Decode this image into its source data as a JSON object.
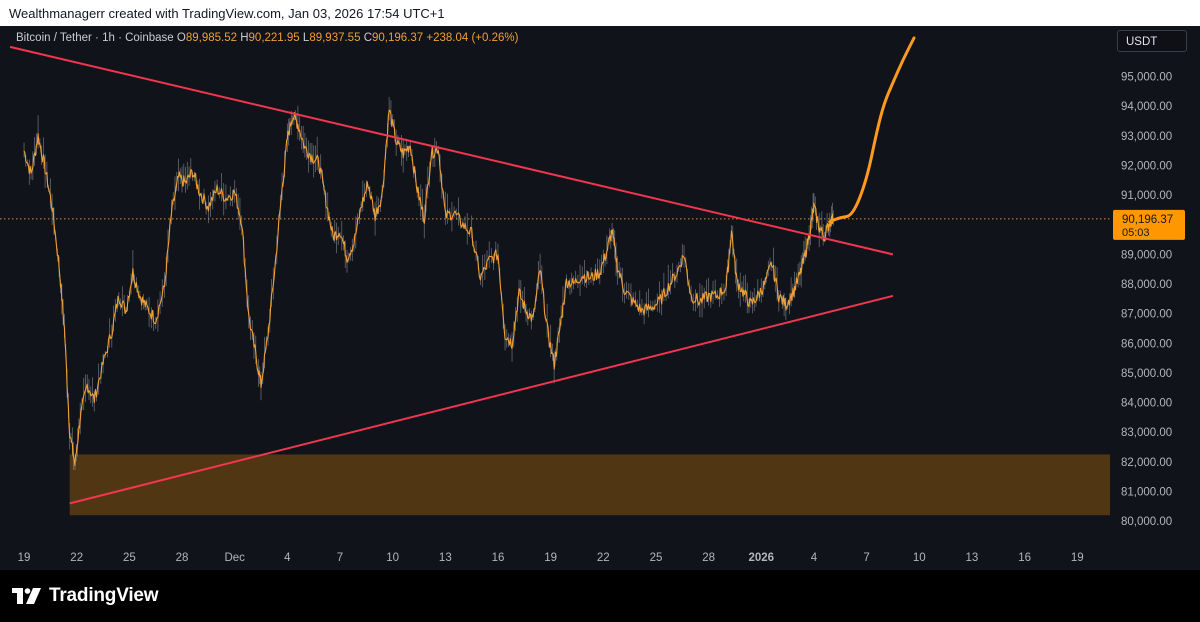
{
  "header": {
    "attribution": "Wealthmanagerr created with TradingView.com, Jan 03, 2026 17:54 UTC+1"
  },
  "legend": {
    "symbol": "Bitcoin / Tether · 1h · Coinbase",
    "open_label": "O",
    "open": "89,985.52",
    "high_label": "H",
    "high": "90,221.95",
    "low_label": "L",
    "low": "89,937.55",
    "close_label": "C",
    "close": "90,196.37",
    "change": "+238.04 (+0.26%)"
  },
  "currency": "USDT",
  "price_tag": {
    "price": "90,196.37",
    "countdown": "05:03"
  },
  "footer": {
    "brand": "TradingView",
    "logo_icon": "tradingview-logo-icon"
  },
  "colors": {
    "background": "#11131a",
    "candles": "#f0a035",
    "wicks": "#8c8f99",
    "trendline": "#f2364f",
    "projection": "#ff9a1f",
    "zone": "#5c3d13",
    "price_tag": "#ff9800"
  },
  "chart_data": {
    "type": "line",
    "title": "",
    "ylim": [
      79600,
      96300
    ],
    "y_ticks": [
      80000,
      81000,
      82000,
      83000,
      84000,
      85000,
      86000,
      87000,
      88000,
      89000,
      90000,
      91000,
      92000,
      93000,
      94000,
      95000
    ],
    "y_tick_labels": [
      "80,000.00",
      "81,000.00",
      "82,000.00",
      "83,000.00",
      "84,000.00",
      "85,000.00",
      "86,000.00",
      "87,000.00",
      "88,000.00",
      "89,000.00",
      "90,000.00",
      "91,000.00",
      "92,000.00",
      "93,000.00",
      "94,000.00",
      "95,000.00"
    ],
    "x_day_range": [
      -0.8,
      50.7
    ],
    "x_tick_labels": [
      {
        "day": 0,
        "label": "19"
      },
      {
        "day": 3,
        "label": "22"
      },
      {
        "day": 6,
        "label": "25"
      },
      {
        "day": 9,
        "label": "28"
      },
      {
        "day": 12,
        "label": "Dec"
      },
      {
        "day": 15,
        "label": "4"
      },
      {
        "day": 18,
        "label": "7"
      },
      {
        "day": 21,
        "label": "10"
      },
      {
        "day": 24,
        "label": "13"
      },
      {
        "day": 27,
        "label": "16"
      },
      {
        "day": 30,
        "label": "19"
      },
      {
        "day": 33,
        "label": "22"
      },
      {
        "day": 36,
        "label": "25"
      },
      {
        "day": 39,
        "label": "28"
      },
      {
        "day": 42,
        "label": "2026",
        "bold": true
      },
      {
        "day": 45,
        "label": "4"
      },
      {
        "day": 48,
        "label": "7"
      },
      {
        "day": 51,
        "label": "10"
      },
      {
        "day": 54,
        "label": "13"
      },
      {
        "day": 57,
        "label": "16"
      },
      {
        "day": 60,
        "label": "19"
      }
    ],
    "series": [
      {
        "type": "price",
        "points": [
          [
            0,
            92500
          ],
          [
            0.4,
            91700
          ],
          [
            0.8,
            93000
          ],
          [
            1.2,
            91900
          ],
          [
            1.6,
            90600
          ],
          [
            2.0,
            88600
          ],
          [
            2.3,
            86500
          ],
          [
            2.6,
            83000
          ],
          [
            2.9,
            81900
          ],
          [
            3.2,
            83500
          ],
          [
            3.6,
            84600
          ],
          [
            4.0,
            84100
          ],
          [
            4.5,
            85300
          ],
          [
            5.0,
            86400
          ],
          [
            5.4,
            87600
          ],
          [
            5.8,
            87100
          ],
          [
            6.2,
            88400
          ],
          [
            6.6,
            87600
          ],
          [
            7.0,
            87200
          ],
          [
            7.5,
            86800
          ],
          [
            8.0,
            87900
          ],
          [
            8.4,
            90400
          ],
          [
            8.8,
            91600
          ],
          [
            9.2,
            91400
          ],
          [
            9.6,
            91800
          ],
          [
            10.0,
            91100
          ],
          [
            10.5,
            90600
          ],
          [
            11.0,
            91200
          ],
          [
            11.5,
            90900
          ],
          [
            12.0,
            91100
          ],
          [
            12.4,
            90100
          ],
          [
            12.8,
            86900
          ],
          [
            13.2,
            85600
          ],
          [
            13.5,
            84600
          ],
          [
            13.9,
            86300
          ],
          [
            14.3,
            88600
          ],
          [
            14.7,
            91200
          ],
          [
            15.0,
            92900
          ],
          [
            15.3,
            93700
          ],
          [
            15.6,
            93400
          ],
          [
            16.0,
            92600
          ],
          [
            16.4,
            92300
          ],
          [
            16.8,
            92100
          ],
          [
            17.2,
            90800
          ],
          [
            17.6,
            89600
          ],
          [
            18.0,
            89800
          ],
          [
            18.4,
            88900
          ],
          [
            18.8,
            89400
          ],
          [
            19.2,
            90600
          ],
          [
            19.6,
            91400
          ],
          [
            20.0,
            90300
          ],
          [
            20.4,
            91000
          ],
          [
            20.8,
            93900
          ],
          [
            21.2,
            92800
          ],
          [
            21.6,
            92400
          ],
          [
            22.0,
            92700
          ],
          [
            22.4,
            91200
          ],
          [
            22.8,
            90200
          ],
          [
            23.2,
            92400
          ],
          [
            23.6,
            92600
          ],
          [
            24.0,
            90300
          ],
          [
            24.5,
            90400
          ],
          [
            25.0,
            90000
          ],
          [
            25.5,
            89700
          ],
          [
            26.0,
            88200
          ],
          [
            26.5,
            88800
          ],
          [
            27.0,
            89000
          ],
          [
            27.4,
            86300
          ],
          [
            27.8,
            86000
          ],
          [
            28.2,
            87700
          ],
          [
            28.6,
            87100
          ],
          [
            29.0,
            86800
          ],
          [
            29.4,
            88500
          ],
          [
            29.8,
            86500
          ],
          [
            30.2,
            85300
          ],
          [
            30.5,
            86400
          ],
          [
            30.9,
            88100
          ],
          [
            31.3,
            88000
          ],
          [
            31.8,
            88300
          ],
          [
            32.3,
            88200
          ],
          [
            32.8,
            88400
          ],
          [
            33.2,
            89100
          ],
          [
            33.5,
            89800
          ],
          [
            33.8,
            88600
          ],
          [
            34.2,
            87800
          ],
          [
            34.7,
            87400
          ],
          [
            35.2,
            87100
          ],
          [
            35.7,
            87200
          ],
          [
            36.2,
            87400
          ],
          [
            36.7,
            87900
          ],
          [
            37.2,
            88400
          ],
          [
            37.6,
            89000
          ],
          [
            38.0,
            87600
          ],
          [
            38.5,
            87400
          ],
          [
            39.0,
            87600
          ],
          [
            39.5,
            87600
          ],
          [
            40.0,
            87900
          ],
          [
            40.3,
            89800
          ],
          [
            40.6,
            88100
          ],
          [
            41.0,
            87700
          ],
          [
            41.4,
            87300
          ],
          [
            41.8,
            87600
          ],
          [
            42.2,
            88000
          ],
          [
            42.6,
            88700
          ],
          [
            43.0,
            87600
          ],
          [
            43.4,
            87300
          ],
          [
            43.8,
            87700
          ],
          [
            44.2,
            88300
          ],
          [
            44.5,
            89000
          ],
          [
            44.8,
            89900
          ],
          [
            45.0,
            90600
          ],
          [
            45.3,
            89900
          ],
          [
            45.6,
            89600
          ],
          [
            45.9,
            90100
          ],
          [
            46.1,
            90196
          ]
        ]
      },
      {
        "type": "projection",
        "points": [
          [
            45.9,
            90100
          ],
          [
            46.5,
            90250
          ],
          [
            47.2,
            90300
          ],
          [
            48.0,
            91500
          ],
          [
            48.6,
            93200
          ],
          [
            49.0,
            94100
          ],
          [
            49.5,
            94800
          ],
          [
            50.1,
            95600
          ],
          [
            50.7,
            96300
          ]
        ]
      },
      {
        "type": "upper_trendline",
        "points": [
          [
            -0.8,
            96000
          ],
          [
            49.5,
            89000
          ]
        ]
      },
      {
        "type": "lower_trendline",
        "points": [
          [
            2.6,
            80600
          ],
          [
            49.5,
            87600
          ]
        ]
      },
      {
        "type": "support_zone",
        "x_start": 2.6,
        "y_range": [
          80200,
          82250
        ]
      },
      {
        "type": "last_price_line",
        "value": 90196.37
      }
    ]
  }
}
